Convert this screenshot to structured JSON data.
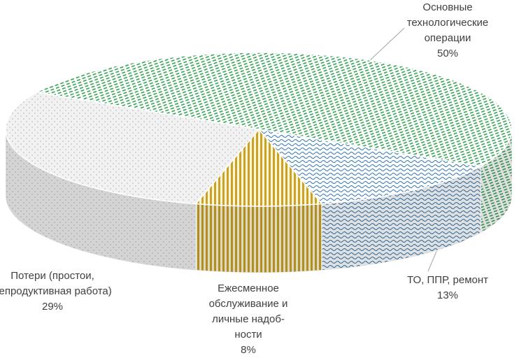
{
  "chart_data": {
    "type": "pie",
    "categories": [
      "Основные технологические операции",
      "ТО, ППР, ремонт",
      "Ежесменное обслуживание и личные надоб-ности",
      "Потери (простои, непродуктивная работа)"
    ],
    "values": [
      50,
      13,
      8,
      29
    ],
    "value_labels": [
      "50%",
      "13%",
      "8%",
      "29%"
    ],
    "colors": [
      "#2e9e4f",
      "#2e75b6",
      "#c9a227",
      "#a6a6a6"
    ]
  }
}
